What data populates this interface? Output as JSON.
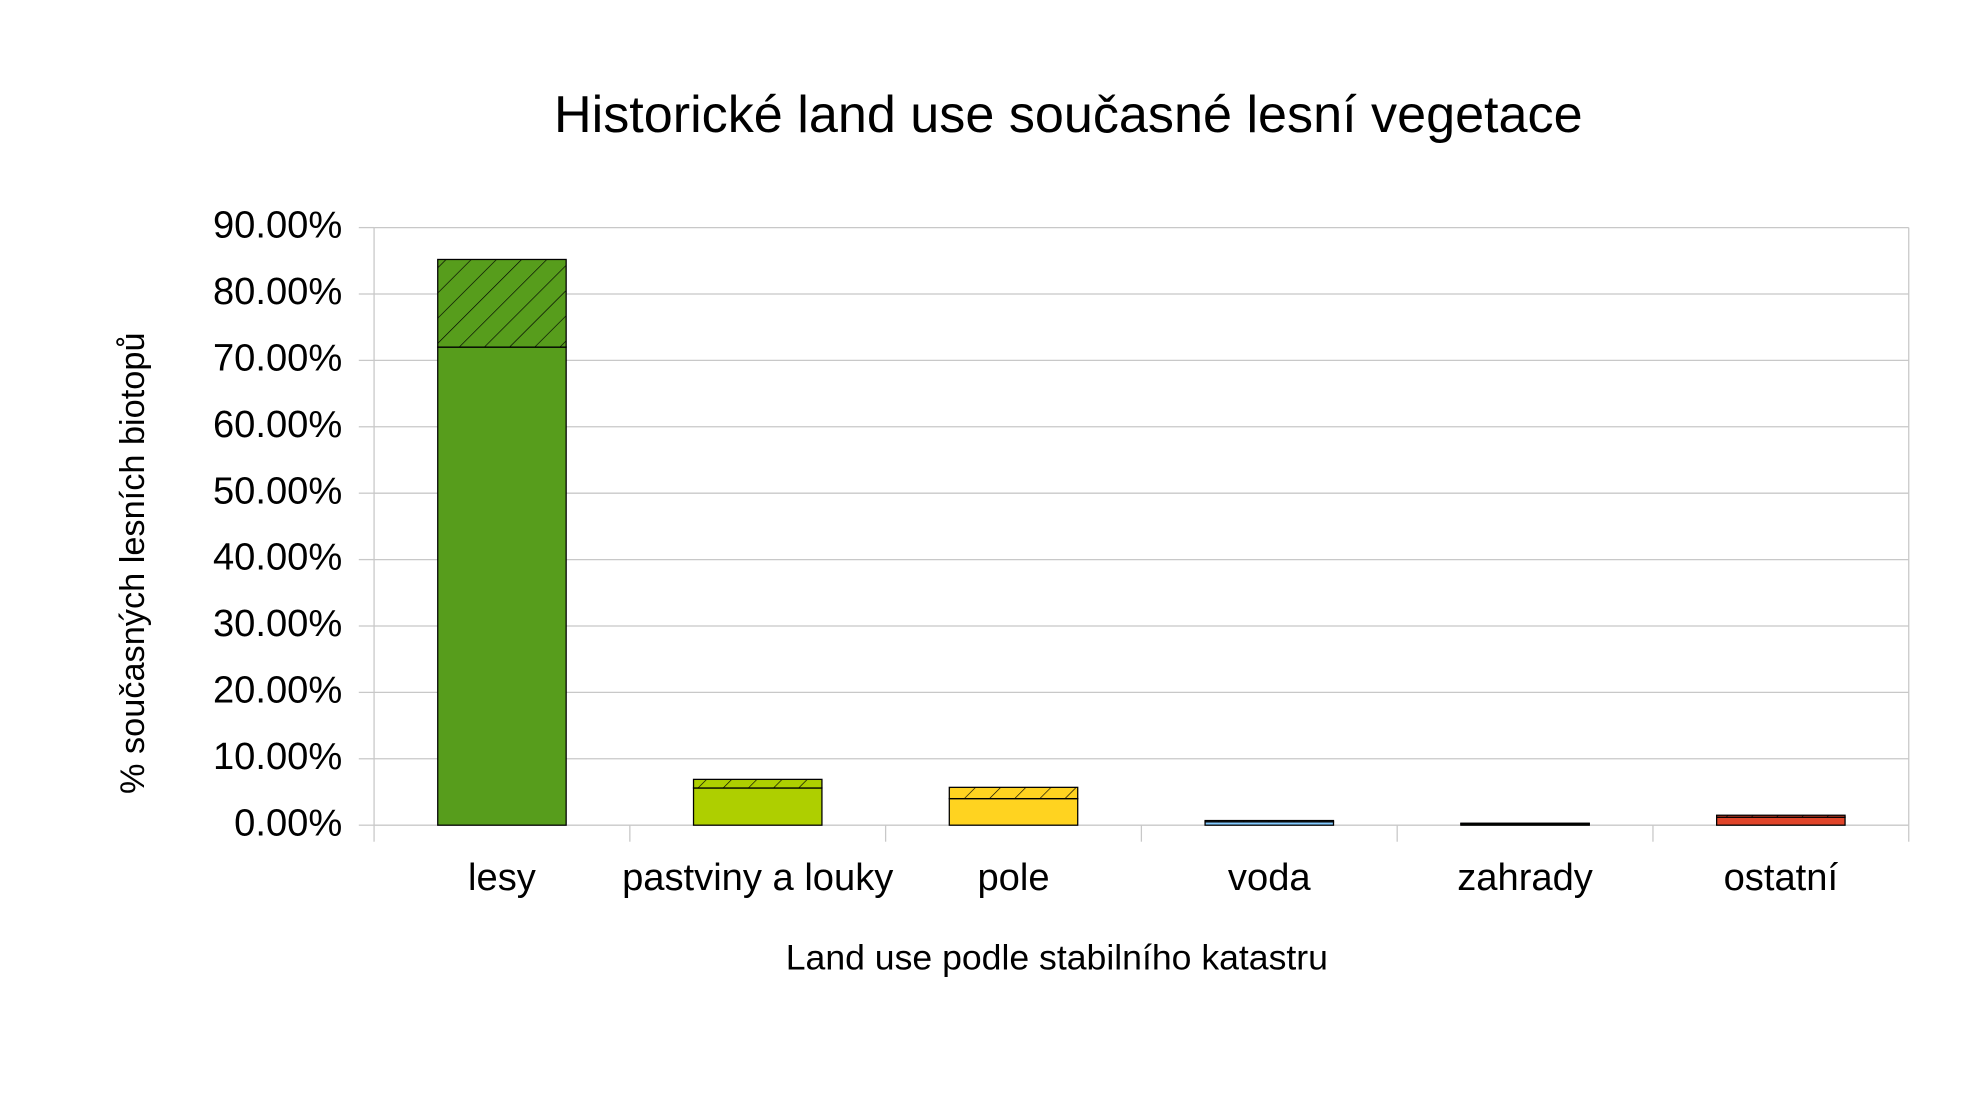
{
  "chart_data": {
    "type": "bar",
    "stacked": true,
    "title": "Historické land use současné lesní vegetace",
    "x_label": "Land use podle stabilního katastru",
    "y_label": "% současných lesních biotopů",
    "categories": [
      "lesy",
      "pastviny a louky",
      "pole",
      "voda",
      "zahrady",
      "ostatní"
    ],
    "colors": [
      "#579d1c",
      "#aecf00",
      "#ffd320",
      "#83caff",
      "#314004",
      "#e0452a"
    ],
    "series": [
      {
        "pattern": "solid",
        "values": [
          72.0,
          5.6,
          4.0,
          0.5,
          0.2,
          1.2
        ]
      },
      {
        "pattern": "hatched",
        "values": [
          13.2,
          1.3,
          1.7,
          0.2,
          0.1,
          0.3
        ]
      }
    ],
    "ylim": [
      0,
      90
    ],
    "yticks": [
      {
        "value": 0,
        "label": "0.00%"
      },
      {
        "value": 10,
        "label": "10.00%"
      },
      {
        "value": 20,
        "label": "20.00%"
      },
      {
        "value": 30,
        "label": "30.00%"
      },
      {
        "value": 40,
        "label": "40.00%"
      },
      {
        "value": 50,
        "label": "50.00%"
      },
      {
        "value": 60,
        "label": "60.00%"
      },
      {
        "value": 70,
        "label": "70.00%"
      },
      {
        "value": 80,
        "label": "80.00%"
      },
      {
        "value": 90,
        "label": "90.00%"
      }
    ],
    "grid": true
  }
}
